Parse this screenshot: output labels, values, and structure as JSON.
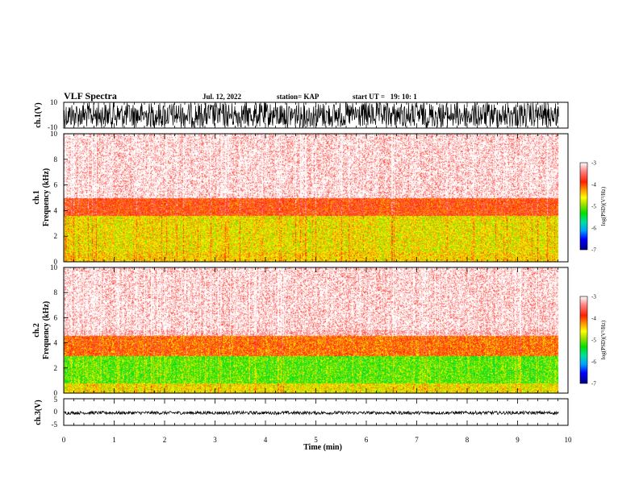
{
  "header": {
    "title": "VLF Spectra",
    "date": "Jul. 12, 2022",
    "station": "station= KAP",
    "start": "start UT =   19: 10: 1"
  },
  "colorbar": {
    "label": "log(PSD)(V²/Hz)",
    "ticks": [
      "-3",
      "-4",
      "-5",
      "-6",
      "-7"
    ],
    "colors": [
      "#000080",
      "#0000ff",
      "#00a0ff",
      "#00e0a0",
      "#00e000",
      "#a0e000",
      "#ffff00",
      "#ffa000",
      "#ff2000",
      "#ff8080",
      "#ffffff"
    ]
  },
  "chart_data": [
    {
      "type": "line",
      "panel": "ch1-waveform",
      "ylabel": "ch.1(V)",
      "ylim": [
        -10,
        10
      ],
      "yticks": [
        "10",
        "-10"
      ],
      "xlim": [
        0,
        10
      ],
      "description_of_signal": "noise spanning full range",
      "series": [
        {
          "color": "#000000"
        }
      ]
    },
    {
      "type": "heatmap",
      "panel": "ch1-spectrogram",
      "ylabel": "ch.1\nFrequency (kHz)",
      "ylabel_lines": [
        "ch.1",
        "Frequency (kHz)"
      ],
      "ylim": [
        0,
        10
      ],
      "yticks": [
        "0",
        "2",
        "4",
        "6",
        "8",
        "10"
      ],
      "xlim": [
        0,
        10
      ],
      "data_end_min": 9.8,
      "bands": [
        {
          "from": 0,
          "to": 0.8,
          "level": -4.5
        },
        {
          "from": 0.8,
          "to": 3.6,
          "level": -4.6
        },
        {
          "from": 3.6,
          "to": 5.0,
          "level": -3.9
        },
        {
          "from": 5.0,
          "to": 10,
          "level": -3.2
        }
      ],
      "crange": [
        -7,
        -3
      ]
    },
    {
      "type": "heatmap",
      "panel": "ch2-spectrogram",
      "ylabel": "ch.2\nFrequency (kHz)",
      "ylabel_lines": [
        "ch.2",
        "Frequency (kHz)"
      ],
      "ylim": [
        0,
        10
      ],
      "yticks": [
        "0",
        "2",
        "4",
        "6",
        "8",
        "10"
      ],
      "xlim": [
        0,
        10
      ],
      "data_end_min": 9.8,
      "bands": [
        {
          "from": 0,
          "to": 0.8,
          "level": -4.6
        },
        {
          "from": 0.8,
          "to": 3.0,
          "level": -5.1
        },
        {
          "from": 3.0,
          "to": 4.6,
          "level": -4.1
        },
        {
          "from": 4.6,
          "to": 10,
          "level": -3.2
        }
      ],
      "crange": [
        -7,
        -3
      ]
    },
    {
      "type": "line",
      "panel": "ch3-waveform",
      "ylabel": "ch.3(V)",
      "ylim": [
        -5,
        5
      ],
      "yticks": [
        "5",
        "0",
        "-5"
      ],
      "xlim": [
        0,
        10
      ],
      "series": [
        {
          "color": "#000000",
          "center": -0.3,
          "amplitude": 0.6
        }
      ]
    }
  ],
  "xaxis": {
    "label": "Time (min)",
    "ticks": [
      "0",
      "1",
      "2",
      "3",
      "4",
      "5",
      "6",
      "7",
      "8",
      "9",
      "10"
    ]
  }
}
